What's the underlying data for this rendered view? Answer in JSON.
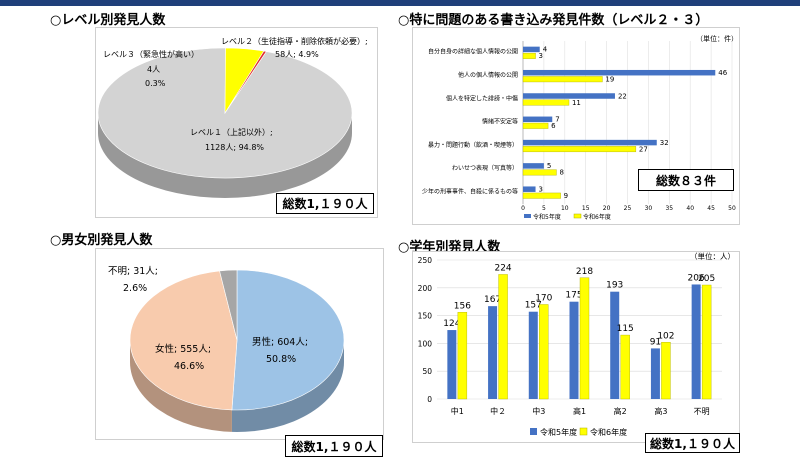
{
  "page": {
    "colors": {
      "topbar": "#1f3f7a",
      "blue": "#4472c4",
      "yellow": "#ffff00",
      "grey": "#d3d3d3",
      "red": "#e03030",
      "male": "#9dc3e6",
      "female": "#f8cbad",
      "unknown": "#a6a6a6"
    }
  },
  "chart_data": [
    {
      "type": "pie",
      "title": "○レベル別発見人数",
      "slices": [
        {
          "name": "レベル１（上記以外）",
          "value": 1128,
          "percent": "94.8%",
          "label_line1": "レベル１（上記以外）;",
          "label_line2": "1128人; 94.8%"
        },
        {
          "name": "レベル２（生徒指導・削除依頼が必要）",
          "value": 58,
          "percent": "4.9%",
          "label_line1": "レベル２（生徒指導・削除依頼が必要）;",
          "label_line2": "58人; 4.9%"
        },
        {
          "name": "レベル３（緊急性が高い）",
          "value": 4,
          "percent": "0.3%",
          "label_line1": "レベル３（緊急性が高い）",
          "label_line2": "4人",
          "label_line3": "0.3%"
        }
      ],
      "total_label": "総数1,１９０人"
    },
    {
      "type": "bar",
      "orientation": "horizontal",
      "title": "○特に問題のある書き込み発見件数（レベル２・３）",
      "unit_label": "（単位：件）",
      "categories": [
        "自分自身の詳細な個人情報の公開",
        "他人の個人情報の公開",
        "個人を特定した誹謗・中傷",
        "情緒不安定等",
        "暴力・問題行動（飲酒・喫煙等）",
        "わいせつ表現（写真等）",
        "少年の刑事事件、自殺に係るもの等"
      ],
      "series": [
        {
          "name": "令和5年度",
          "values": [
            4,
            46,
            22,
            7,
            32,
            5,
            3
          ]
        },
        {
          "name": "令和6年度",
          "values": [
            3,
            19,
            11,
            6,
            27,
            8,
            9
          ]
        }
      ],
      "xticks": [
        0,
        5,
        10,
        15,
        20,
        25,
        30,
        35,
        40,
        45,
        50
      ],
      "xlim": [
        0,
        50
      ],
      "legend": "bottom",
      "total_label": "総数８３件"
    },
    {
      "type": "pie",
      "title": "○男女別発見人数",
      "slices": [
        {
          "name": "男性",
          "value": 604,
          "label_line1": "男性; 604人;",
          "label_line2": "50.8%"
        },
        {
          "name": "女性",
          "value": 555,
          "label_line1": "女性; 555人;",
          "label_line2": "46.6%"
        },
        {
          "name": "不明",
          "value": 31,
          "label_line1": "不明; 31人;",
          "label_line2": "2.6%"
        }
      ],
      "total_label": "総数1,１９０人"
    },
    {
      "type": "bar",
      "title": "○学年別発見人数",
      "unit_label": "（単位：人）",
      "categories": [
        "中1",
        "中２",
        "中3",
        "高1",
        "高2",
        "高3",
        "不明"
      ],
      "series": [
        {
          "name": "令和5年度",
          "values": [
            124,
            167,
            157,
            175,
            193,
            91,
            206
          ]
        },
        {
          "name": "令和6年度",
          "values": [
            156,
            224,
            170,
            218,
            115,
            102,
            205
          ]
        }
      ],
      "yticks": [
        0,
        50,
        100,
        150,
        200,
        250
      ],
      "ylim": [
        0,
        250
      ],
      "legend": "bottom",
      "total_label": "総数1,１９０人"
    }
  ]
}
